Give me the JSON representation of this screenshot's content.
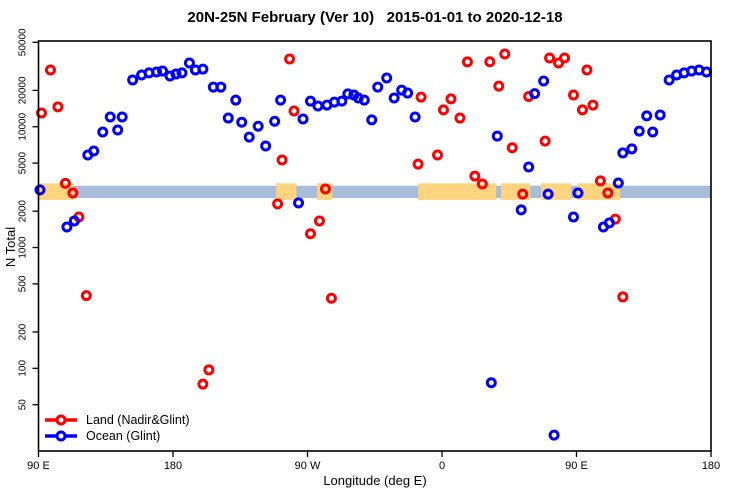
{
  "title": "20N-25N February (Ver 10)   2015-01-01 to 2020-12-18",
  "chart_data": {
    "type": "scatter",
    "title": "20N-25N February (Ver 10)   2015-01-01 to 2020-12-18",
    "xlabel": "Longitude (deg E)",
    "ylabel": "N Total",
    "x_axis": {
      "range": [
        90,
        540
      ],
      "ticks": [
        90,
        180,
        270,
        360,
        450,
        540
      ],
      "tick_labels": [
        "90 E",
        "180",
        "90 W",
        "0",
        "90 E",
        "180"
      ]
    },
    "y_axis": {
      "scale": "log",
      "range": [
        21,
        52000
      ],
      "ticks": [
        50,
        100,
        200,
        500,
        1000,
        2000,
        5000,
        10000,
        20000,
        50000
      ],
      "tick_labels": [
        "50",
        "100",
        "200",
        "500",
        "1000",
        "2000",
        "5000",
        "10000",
        "20000",
        "50000"
      ]
    },
    "grid": "off",
    "legend": {
      "position": "bottom-left",
      "items": [
        {
          "label": "Land (Nadir&Glint)",
          "color": "#ff0000"
        },
        {
          "label": "Ocean (Glint)",
          "color": "#0000ff"
        }
      ]
    },
    "band": {
      "description": "land/ocean indicator strip",
      "center_value": 2850,
      "ocean": {
        "color": "#a8bdd9",
        "range": [
          90,
          540
        ],
        "value_top": 3250,
        "value_bottom": 2570
      },
      "land": {
        "color": "#ffd47f",
        "value_top": 3400,
        "value_bottom": 2480,
        "segments": [
          [
            90,
            113.4
          ],
          [
            249,
            262.5
          ],
          [
            276.5,
            286.6
          ],
          [
            344,
            396.2
          ],
          [
            399.6,
            419
          ],
          [
            426.3,
            446.4
          ],
          [
            450.4,
            479.2
          ]
        ]
      }
    },
    "series": [
      {
        "name": "Land (Nadir&Glint)",
        "color": "#ff0000",
        "points": [
          [
            98,
            29500
          ],
          [
            92,
            13000
          ],
          [
            103,
            14600
          ],
          [
            108,
            3400
          ],
          [
            113,
            2830
          ],
          [
            117,
            1790
          ],
          [
            122,
            400
          ],
          [
            200,
            74
          ],
          [
            204,
            97
          ],
          [
            250,
            2300
          ],
          [
            253,
            5300
          ],
          [
            258,
            36400
          ],
          [
            261,
            13500
          ],
          [
            272,
            1300
          ],
          [
            278,
            1660
          ],
          [
            282,
            3050
          ],
          [
            286,
            380
          ],
          [
            344,
            4900
          ],
          [
            346,
            17600
          ],
          [
            357,
            5830
          ],
          [
            361,
            13800
          ],
          [
            366,
            17000
          ],
          [
            372,
            11800
          ],
          [
            377,
            34400
          ],
          [
            382,
            3900
          ],
          [
            387,
            3360
          ],
          [
            392,
            34500
          ],
          [
            398,
            21700
          ],
          [
            402,
            40000
          ],
          [
            407,
            6700
          ],
          [
            414,
            2770
          ],
          [
            418,
            17800
          ],
          [
            429,
            7600
          ],
          [
            432,
            37100
          ],
          [
            438,
            33700
          ],
          [
            442,
            37100
          ],
          [
            448,
            18300
          ],
          [
            454,
            13800
          ],
          [
            457,
            29500
          ],
          [
            461,
            15100
          ],
          [
            466,
            3560
          ],
          [
            471,
            2830
          ],
          [
            476,
            1720
          ],
          [
            481,
            390
          ]
        ]
      },
      {
        "name": "Ocean (Glint)",
        "color": "#0000ff",
        "points": [
          [
            91,
            3000
          ],
          [
            109,
            1480
          ],
          [
            114,
            1660
          ],
          [
            123,
            5830
          ],
          [
            127,
            6300
          ],
          [
            133,
            9050
          ],
          [
            138,
            12050
          ],
          [
            143,
            9400
          ],
          [
            146,
            12050
          ],
          [
            153,
            24400
          ],
          [
            159,
            26800
          ],
          [
            164,
            27900
          ],
          [
            169,
            28400
          ],
          [
            173,
            28900
          ],
          [
            178,
            26300
          ],
          [
            182,
            27300
          ],
          [
            186,
            27900
          ],
          [
            191,
            33700
          ],
          [
            195,
            29500
          ],
          [
            200,
            30000
          ],
          [
            207,
            21300
          ],
          [
            212,
            21300
          ],
          [
            217,
            11800
          ],
          [
            222,
            16600
          ],
          [
            226,
            10900
          ],
          [
            231,
            8200
          ],
          [
            237,
            10100
          ],
          [
            242,
            6930
          ],
          [
            248,
            11100
          ],
          [
            252,
            16600
          ],
          [
            264,
            2340
          ],
          [
            267,
            11600
          ],
          [
            272,
            16300
          ],
          [
            277,
            14850
          ],
          [
            283,
            15100
          ],
          [
            288,
            16000
          ],
          [
            293,
            16300
          ],
          [
            297,
            18700
          ],
          [
            301,
            18300
          ],
          [
            304,
            17300
          ],
          [
            308,
            16600
          ],
          [
            313,
            11400
          ],
          [
            317,
            21300
          ],
          [
            323,
            25300
          ],
          [
            328,
            17300
          ],
          [
            333,
            20100
          ],
          [
            337,
            19000
          ],
          [
            342,
            12050
          ],
          [
            393,
            76
          ],
          [
            397,
            8370
          ],
          [
            413,
            2050
          ],
          [
            418,
            4640
          ],
          [
            422,
            18800
          ],
          [
            428,
            23900
          ],
          [
            431,
            2770
          ],
          [
            435,
            28
          ],
          [
            448,
            1790
          ],
          [
            451,
            2830
          ],
          [
            468,
            1480
          ],
          [
            472,
            1600
          ],
          [
            478,
            3420
          ],
          [
            481,
            6070
          ],
          [
            487,
            6550
          ],
          [
            492,
            9200
          ],
          [
            497,
            12300
          ],
          [
            501,
            9050
          ],
          [
            506,
            12500
          ],
          [
            512,
            24400
          ],
          [
            517,
            26800
          ],
          [
            522,
            27900
          ],
          [
            527,
            28900
          ],
          [
            532,
            29500
          ],
          [
            537,
            28400
          ]
        ]
      }
    ]
  }
}
